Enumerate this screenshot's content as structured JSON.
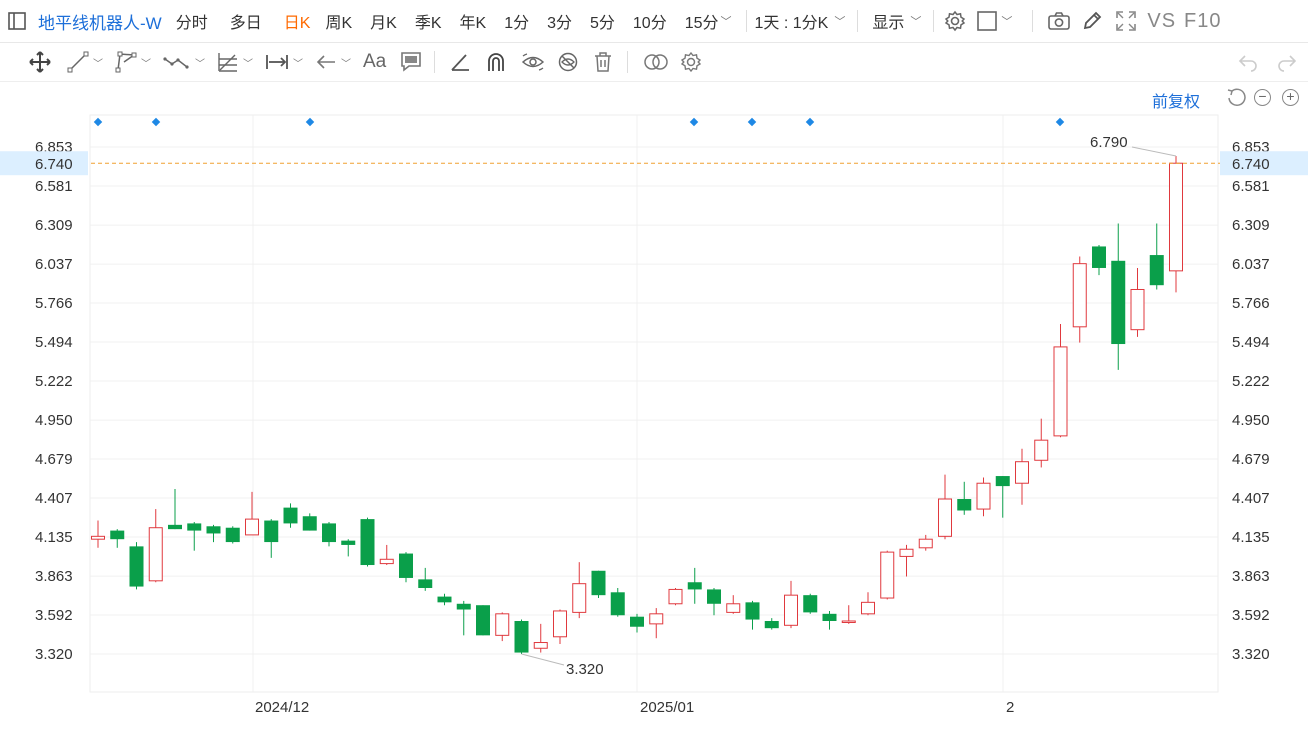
{
  "header": {
    "symbol": "地平线机器人-W",
    "periods": [
      "分时",
      "多日",
      "日K",
      "周K",
      "月K",
      "季K",
      "年K",
      "1分",
      "3分",
      "5分",
      "10分",
      "15分"
    ],
    "active_period": "日K",
    "range_select": "1天 : 1分K",
    "display": "显示",
    "vs": "VS",
    "f10": "F10"
  },
  "drawing_tools": {
    "font_tool": "Aa",
    "icons": [
      "move-icon",
      "line-icon",
      "polyline-icon",
      "wave-icon",
      "fib-icon",
      "measure-icon",
      "arrow-icon",
      "text-icon",
      "comment-icon",
      "ruler-icon",
      "magnet-icon",
      "eye-icon",
      "hide-icon",
      "trash-icon",
      "link-icon",
      "settings-icon",
      "undo-icon",
      "redo-icon"
    ]
  },
  "adjust": "前复权",
  "colors": {
    "up": "#e0393e",
    "down": "#0a9f4a",
    "marker": "#1e88e5",
    "priceline": "#f0a030",
    "priceTag": "#dcefff"
  },
  "chart_data": {
    "type": "candlestick",
    "current_price": "6.740",
    "high_label": "6.790",
    "low_label": "3.320",
    "y_ticks": [
      "6.853",
      "6.581",
      "6.309",
      "6.037",
      "5.766",
      "5.494",
      "5.222",
      "4.950",
      "4.679",
      "4.407",
      "4.135",
      "3.863",
      "3.592",
      "3.320"
    ],
    "x_labels": [
      "2024/12",
      "2025/01",
      "2"
    ],
    "ylim": [
      3.07,
      6.91
    ],
    "candles": [
      {
        "o": 4.12,
        "h": 4.25,
        "l": 4.06,
        "c": 4.14
      },
      {
        "o": 4.18,
        "h": 4.19,
        "l": 4.06,
        "c": 4.12
      },
      {
        "o": 4.07,
        "h": 4.1,
        "l": 3.77,
        "c": 3.79
      },
      {
        "o": 3.83,
        "h": 4.33,
        "l": 3.82,
        "c": 4.2
      },
      {
        "o": 4.22,
        "h": 4.47,
        "l": 4.19,
        "c": 4.19
      },
      {
        "o": 4.23,
        "h": 4.24,
        "l": 4.04,
        "c": 4.18
      },
      {
        "o": 4.21,
        "h": 4.22,
        "l": 4.1,
        "c": 4.16
      },
      {
        "o": 4.2,
        "h": 4.21,
        "l": 4.09,
        "c": 4.1
      },
      {
        "o": 4.15,
        "h": 4.45,
        "l": 4.15,
        "c": 4.26
      },
      {
        "o": 4.25,
        "h": 4.26,
        "l": 3.99,
        "c": 4.1
      },
      {
        "o": 4.34,
        "h": 4.37,
        "l": 4.2,
        "c": 4.23
      },
      {
        "o": 4.28,
        "h": 4.3,
        "l": 4.18,
        "c": 4.18
      },
      {
        "o": 4.23,
        "h": 4.24,
        "l": 4.07,
        "c": 4.1
      },
      {
        "o": 4.11,
        "h": 4.12,
        "l": 4.0,
        "c": 4.08
      },
      {
        "o": 4.26,
        "h": 4.27,
        "l": 3.93,
        "c": 3.94
      },
      {
        "o": 3.95,
        "h": 4.08,
        "l": 3.94,
        "c": 3.98
      },
      {
        "o": 4.02,
        "h": 4.03,
        "l": 3.82,
        "c": 3.85
      },
      {
        "o": 3.84,
        "h": 3.92,
        "l": 3.76,
        "c": 3.78
      },
      {
        "o": 3.72,
        "h": 3.74,
        "l": 3.66,
        "c": 3.68
      },
      {
        "o": 3.67,
        "h": 3.69,
        "l": 3.45,
        "c": 3.63
      },
      {
        "o": 3.66,
        "h": 3.66,
        "l": 3.45,
        "c": 3.45
      },
      {
        "o": 3.45,
        "h": 3.61,
        "l": 3.41,
        "c": 3.6
      },
      {
        "o": 3.55,
        "h": 3.56,
        "l": 3.32,
        "c": 3.33
      },
      {
        "o": 3.36,
        "h": 3.53,
        "l": 3.33,
        "c": 3.4
      },
      {
        "o": 3.44,
        "h": 3.63,
        "l": 3.39,
        "c": 3.62
      },
      {
        "o": 3.61,
        "h": 3.96,
        "l": 3.57,
        "c": 3.81
      },
      {
        "o": 3.9,
        "h": 3.9,
        "l": 3.71,
        "c": 3.73
      },
      {
        "o": 3.75,
        "h": 3.78,
        "l": 3.58,
        "c": 3.59
      },
      {
        "o": 3.58,
        "h": 3.6,
        "l": 3.47,
        "c": 3.51
      },
      {
        "o": 3.53,
        "h": 3.64,
        "l": 3.43,
        "c": 3.6
      },
      {
        "o": 3.67,
        "h": 3.78,
        "l": 3.66,
        "c": 3.77
      },
      {
        "o": 3.82,
        "h": 3.92,
        "l": 3.67,
        "c": 3.77
      },
      {
        "o": 3.77,
        "h": 3.78,
        "l": 3.59,
        "c": 3.67
      },
      {
        "o": 3.61,
        "h": 3.73,
        "l": 3.6,
        "c": 3.67
      },
      {
        "o": 3.68,
        "h": 3.69,
        "l": 3.49,
        "c": 3.56
      },
      {
        "o": 3.55,
        "h": 3.57,
        "l": 3.49,
        "c": 3.5
      },
      {
        "o": 3.52,
        "h": 3.83,
        "l": 3.5,
        "c": 3.73
      },
      {
        "o": 3.73,
        "h": 3.74,
        "l": 3.6,
        "c": 3.61
      },
      {
        "o": 3.6,
        "h": 3.62,
        "l": 3.49,
        "c": 3.55
      },
      {
        "o": 3.55,
        "h": 3.66,
        "l": 3.53,
        "c": 3.55
      },
      {
        "o": 3.6,
        "h": 3.75,
        "l": 3.59,
        "c": 3.68
      },
      {
        "o": 3.71,
        "h": 4.04,
        "l": 3.7,
        "c": 4.03
      },
      {
        "o": 4.0,
        "h": 4.08,
        "l": 3.86,
        "c": 4.05
      },
      {
        "o": 4.06,
        "h": 4.15,
        "l": 4.04,
        "c": 4.12
      },
      {
        "o": 4.14,
        "h": 4.57,
        "l": 4.12,
        "c": 4.4
      },
      {
        "o": 4.4,
        "h": 4.52,
        "l": 4.29,
        "c": 4.32
      },
      {
        "o": 4.33,
        "h": 4.55,
        "l": 4.28,
        "c": 4.51
      },
      {
        "o": 4.56,
        "h": 4.56,
        "l": 4.27,
        "c": 4.49
      },
      {
        "o": 4.51,
        "h": 4.75,
        "l": 4.36,
        "c": 4.66
      },
      {
        "o": 4.67,
        "h": 4.96,
        "l": 4.62,
        "c": 4.81
      },
      {
        "o": 4.84,
        "h": 5.62,
        "l": 4.83,
        "c": 5.46
      },
      {
        "o": 5.6,
        "h": 6.09,
        "l": 5.49,
        "c": 6.04
      },
      {
        "o": 6.16,
        "h": 6.17,
        "l": 5.96,
        "c": 6.01
      },
      {
        "o": 6.06,
        "h": 6.32,
        "l": 5.3,
        "c": 5.48
      },
      {
        "o": 5.58,
        "h": 6.01,
        "l": 5.53,
        "c": 5.86
      },
      {
        "o": 6.1,
        "h": 6.32,
        "l": 5.86,
        "c": 5.89
      },
      {
        "o": 5.99,
        "h": 6.79,
        "l": 5.84,
        "c": 6.74
      }
    ]
  }
}
